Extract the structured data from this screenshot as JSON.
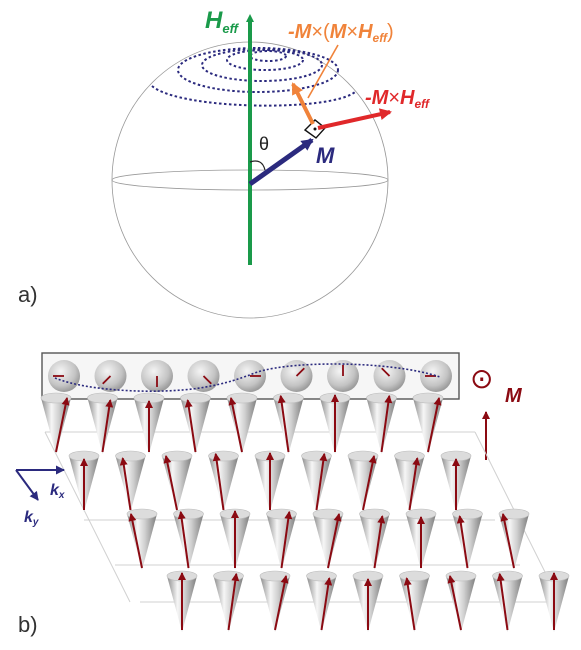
{
  "panel_a": {
    "label": "a)",
    "field_label": "H",
    "field_sub": "eff",
    "moment_label": "M",
    "angle_label": "θ",
    "precession_label": {
      "prefix": "-",
      "m": "M",
      "x": "×",
      "h": "H",
      "sub": "eff"
    },
    "damping_label": {
      "prefix": "-",
      "m1": "M",
      "x1": "×",
      "open": "(",
      "m2": "M",
      "x2": "×",
      "h": "H",
      "sub": "eff",
      "close": ")"
    },
    "colors": {
      "field": "#1a9a4a",
      "moment": "#2b2a7e",
      "precession": "#e0282a",
      "damping": "#f0833a",
      "orbit": "#2b2a7e",
      "sphere": "#999999"
    }
  },
  "panel_b": {
    "label": "b)",
    "moment_symbol": "⊙",
    "moment_label": "M",
    "kx_label": "k",
    "kx_sub": "x",
    "ky_label": "k",
    "ky_sub": "y",
    "colors": {
      "arrow": "#8b0a12",
      "axis": "#2b2a7e",
      "orbit": "#2b2a7e"
    },
    "strip_count": 9,
    "cone_rows": [
      9,
      9,
      9,
      9
    ]
  }
}
